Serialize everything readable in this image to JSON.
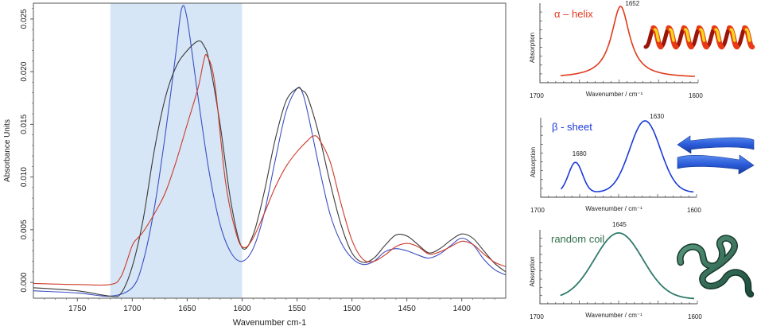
{
  "chart_data": [
    {
      "type": "line",
      "xlabel": "Wavenumber cm-1",
      "ylabel": "Absorbance Units",
      "xlim": [
        1790,
        1360
      ],
      "ylim": [
        -0.0015,
        0.0265
      ],
      "x_ticks": [
        1750,
        1700,
        1650,
        1600,
        1550,
        1500,
        1450,
        1400
      ],
      "y_ticks": [
        0.0,
        0.005,
        0.01,
        0.015,
        0.02,
        0.025
      ],
      "y_tick_labels": [
        "0.000",
        "0.005",
        "0.010",
        "0.015",
        "0.020",
        "0.025"
      ],
      "highlight_band": [
        1720,
        1600
      ],
      "highlight_color": "#d6e6f6",
      "series": [
        {
          "name": "blue",
          "color": "#3b4fc4",
          "x": [
            1790,
            1750,
            1720,
            1700,
            1690,
            1680,
            1670,
            1660,
            1655,
            1650,
            1640,
            1630,
            1620,
            1610,
            1600,
            1590,
            1580,
            1570,
            1560,
            1550,
            1545,
            1540,
            1530,
            1520,
            1510,
            1500,
            1490,
            1480,
            1470,
            1460,
            1450,
            1440,
            1430,
            1420,
            1410,
            1400,
            1390,
            1380,
            1370,
            1360
          ],
          "values": [
            -0.0008,
            -0.001,
            -0.0013,
            -0.0005,
            0.002,
            0.007,
            0.014,
            0.022,
            0.026,
            0.025,
            0.0175,
            0.0105,
            0.0055,
            0.0028,
            0.002,
            0.0032,
            0.0065,
            0.0115,
            0.0162,
            0.0184,
            0.018,
            0.016,
            0.011,
            0.0065,
            0.0038,
            0.0023,
            0.0017,
            0.002,
            0.0029,
            0.0032,
            0.003,
            0.0026,
            0.0023,
            0.0027,
            0.0035,
            0.0042,
            0.0036,
            0.0022,
            0.0012,
            0.0007
          ]
        },
        {
          "name": "black",
          "color": "#3a3a3a",
          "x": [
            1790,
            1750,
            1720,
            1710,
            1700,
            1690,
            1680,
            1670,
            1660,
            1650,
            1640,
            1635,
            1630,
            1620,
            1610,
            1600,
            1590,
            1580,
            1570,
            1560,
            1550,
            1545,
            1540,
            1530,
            1520,
            1510,
            1500,
            1490,
            1480,
            1470,
            1460,
            1450,
            1440,
            1430,
            1420,
            1410,
            1400,
            1390,
            1380,
            1370,
            1360
          ],
          "values": [
            -0.0005,
            -0.0008,
            -0.0013,
            -0.001,
            0.0015,
            0.006,
            0.0125,
            0.0175,
            0.0205,
            0.022,
            0.0229,
            0.0225,
            0.021,
            0.015,
            0.0075,
            0.0033,
            0.0045,
            0.0085,
            0.0135,
            0.0172,
            0.0184,
            0.0182,
            0.0175,
            0.014,
            0.0095,
            0.0055,
            0.0028,
            0.0019,
            0.0023,
            0.0035,
            0.0045,
            0.0044,
            0.0036,
            0.0028,
            0.0032,
            0.004,
            0.0046,
            0.0042,
            0.003,
            0.0018,
            0.001
          ]
        },
        {
          "name": "red",
          "color": "#cc3a2a",
          "x": [
            1790,
            1750,
            1720,
            1710,
            1700,
            1695,
            1690,
            1680,
            1670,
            1660,
            1650,
            1640,
            1635,
            1632,
            1625,
            1615,
            1605,
            1598,
            1590,
            1580,
            1570,
            1560,
            1550,
            1540,
            1535,
            1530,
            1520,
            1510,
            1500,
            1490,
            1480,
            1470,
            1460,
            1450,
            1440,
            1430,
            1420,
            1410,
            1400,
            1390,
            1380,
            1370,
            1360
          ],
          "values": [
            -0.0001,
            -0.0002,
            -0.0002,
            0.0006,
            0.0035,
            0.0042,
            0.0048,
            0.0065,
            0.0085,
            0.0115,
            0.015,
            0.0185,
            0.021,
            0.0215,
            0.019,
            0.0095,
            0.0045,
            0.0033,
            0.0042,
            0.0065,
            0.009,
            0.011,
            0.0124,
            0.0135,
            0.0139,
            0.0136,
            0.0115,
            0.0075,
            0.004,
            0.0022,
            0.002,
            0.0026,
            0.0034,
            0.0037,
            0.0034,
            0.0027,
            0.0029,
            0.0034,
            0.0039,
            0.0036,
            0.0027,
            0.0019,
            0.0015
          ]
        }
      ]
    },
    {
      "type": "line",
      "title": "α – helix",
      "title_color": "#e03a1e",
      "color": "#e03a1e",
      "ylabel": "Absorption",
      "xlabel": "Wavenumber / cm⁻¹",
      "x_tick_labels": [
        "1700",
        "1600"
      ],
      "peak_labels": [
        "1652"
      ],
      "peaks": [
        {
          "center": 1652,
          "height": 1.0,
          "width": 11
        }
      ],
      "curve_shape": "lorentzian"
    },
    {
      "type": "line",
      "title": "β - sheet",
      "title_color": "#1a3ad8",
      "color": "#1a3ad8",
      "ylabel": "Absorption",
      "xlabel": "Wavenumber / cm⁻¹",
      "x_tick_labels": [
        "1700",
        "1600"
      ],
      "peak_labels": [
        "1680",
        "1630"
      ],
      "peaks": [
        {
          "center": 1680,
          "height": 0.42,
          "width": 5
        },
        {
          "center": 1630,
          "height": 1.0,
          "width": 11
        }
      ],
      "curve_shape": "gaussian"
    },
    {
      "type": "line",
      "title": "random coil",
      "title_color": "#2f6f4a",
      "color": "#2f7a6a",
      "ylabel": "Absorption",
      "xlabel": "Wavenumber / cm⁻¹",
      "x_tick_labels": [
        "1700",
        "1600"
      ],
      "peak_labels": [
        "1645"
      ],
      "peaks": [
        {
          "center": 1645,
          "height": 1.0,
          "width": 26
        }
      ],
      "curve_shape": "gaussian"
    }
  ],
  "illustrations": {
    "helix": "alpha-helix ribbon (red/yellow)",
    "sheet": "beta-sheet arrows (blue)",
    "coil": "random coil tube (dark green)"
  }
}
